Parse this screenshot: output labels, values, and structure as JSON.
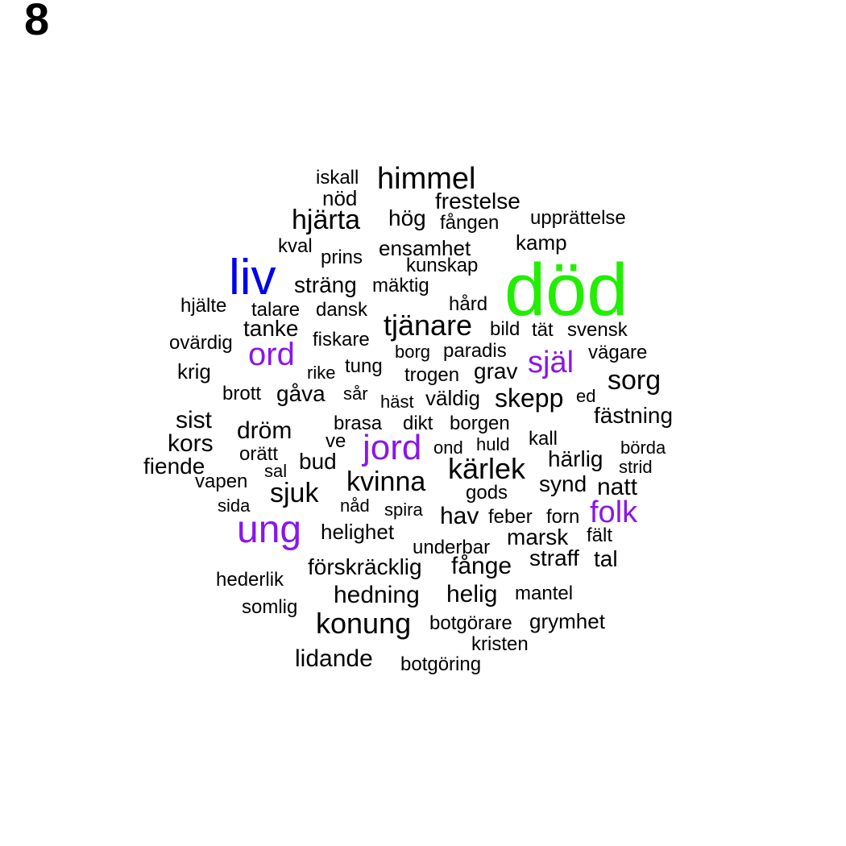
{
  "panel_label": "8",
  "colors": {
    "default": "#000000",
    "blue": "#0000ee",
    "green": "#22ee00",
    "purple": "#8a16e8"
  },
  "words": [
    {
      "text": "död",
      "color": "green"
    },
    {
      "text": "liv",
      "color": "blue"
    },
    {
      "text": "ung",
      "color": "purple"
    },
    {
      "text": "jord",
      "color": "purple"
    },
    {
      "text": "ord",
      "color": "purple"
    },
    {
      "text": "själ",
      "color": "purple"
    },
    {
      "text": "folk",
      "color": "purple"
    },
    {
      "text": "himmel"
    },
    {
      "text": "iskall"
    },
    {
      "text": "nöd"
    },
    {
      "text": "frestelse"
    },
    {
      "text": "hjärta"
    },
    {
      "text": "hög"
    },
    {
      "text": "fången"
    },
    {
      "text": "upprättelse"
    },
    {
      "text": "kval"
    },
    {
      "text": "prins"
    },
    {
      "text": "ensamhet"
    },
    {
      "text": "kamp"
    },
    {
      "text": "kunskap"
    },
    {
      "text": "sträng"
    },
    {
      "text": "mäktig"
    },
    {
      "text": "hjälte"
    },
    {
      "text": "talare"
    },
    {
      "text": "dansk"
    },
    {
      "text": "hård"
    },
    {
      "text": "tjänare"
    },
    {
      "text": "tanke"
    },
    {
      "text": "bild"
    },
    {
      "text": "tät"
    },
    {
      "text": "svensk"
    },
    {
      "text": "ovärdig"
    },
    {
      "text": "fiskare"
    },
    {
      "text": "borg"
    },
    {
      "text": "paradis"
    },
    {
      "text": "vägare"
    },
    {
      "text": "krig"
    },
    {
      "text": "rike"
    },
    {
      "text": "tung"
    },
    {
      "text": "trogen"
    },
    {
      "text": "grav"
    },
    {
      "text": "sorg"
    },
    {
      "text": "brott"
    },
    {
      "text": "gåva"
    },
    {
      "text": "sår"
    },
    {
      "text": "häst"
    },
    {
      "text": "väldig"
    },
    {
      "text": "skepp"
    },
    {
      "text": "ed"
    },
    {
      "text": "fästning"
    },
    {
      "text": "sist"
    },
    {
      "text": "dröm"
    },
    {
      "text": "brasa"
    },
    {
      "text": "dikt"
    },
    {
      "text": "borgen"
    },
    {
      "text": "kors"
    },
    {
      "text": "ve"
    },
    {
      "text": "ond"
    },
    {
      "text": "huld"
    },
    {
      "text": "kall"
    },
    {
      "text": "börda"
    },
    {
      "text": "orätt"
    },
    {
      "text": "härlig"
    },
    {
      "text": "fiende"
    },
    {
      "text": "sal"
    },
    {
      "text": "bud"
    },
    {
      "text": "kärlek"
    },
    {
      "text": "strid"
    },
    {
      "text": "vapen"
    },
    {
      "text": "kvinna"
    },
    {
      "text": "synd"
    },
    {
      "text": "natt"
    },
    {
      "text": "sjuk"
    },
    {
      "text": "gods"
    },
    {
      "text": "sida"
    },
    {
      "text": "nåd"
    },
    {
      "text": "spira"
    },
    {
      "text": "hav"
    },
    {
      "text": "feber"
    },
    {
      "text": "forn"
    },
    {
      "text": "helighet"
    },
    {
      "text": "marsk"
    },
    {
      "text": "fält"
    },
    {
      "text": "underbar"
    },
    {
      "text": "straff"
    },
    {
      "text": "tal"
    },
    {
      "text": "förskräcklig"
    },
    {
      "text": "fånge"
    },
    {
      "text": "hederlik"
    },
    {
      "text": "hedning"
    },
    {
      "text": "helig"
    },
    {
      "text": "mantel"
    },
    {
      "text": "somlig"
    },
    {
      "text": "konung"
    },
    {
      "text": "botgörare"
    },
    {
      "text": "grymhet"
    },
    {
      "text": "kristen"
    },
    {
      "text": "lidande"
    },
    {
      "text": "botgöring"
    }
  ]
}
